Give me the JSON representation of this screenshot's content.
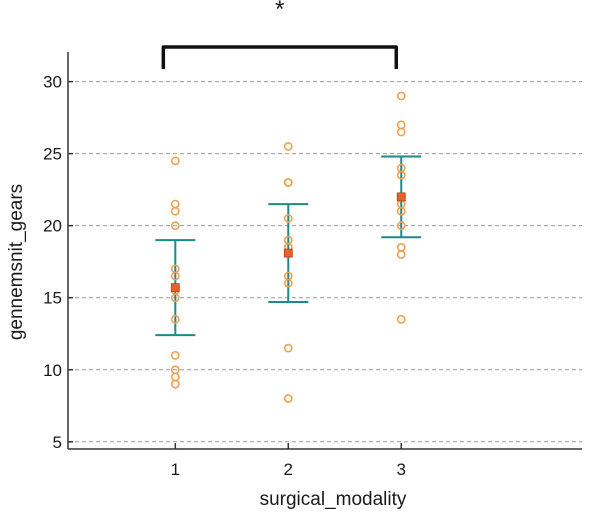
{
  "chart_data": {
    "type": "scatter",
    "xlabel": "surgical_modality",
    "ylabel": "gennemsnit_gears",
    "ylim": [
      4.5,
      31.5
    ],
    "xlim": [
      0.05,
      4.6
    ],
    "yticks": [
      5,
      10,
      15,
      20,
      25,
      30
    ],
    "xticks": [
      1,
      2,
      3
    ],
    "grid": "horizontal dashed",
    "colors": {
      "points": "#f0a050",
      "mean": "#e8602c",
      "error_bar": "#1a8a8a",
      "grid": "#999999",
      "axis": "#333333"
    },
    "groups": [
      {
        "x": 1,
        "points": [
          24.5,
          21.5,
          21,
          20,
          17,
          16.5,
          15.5,
          15,
          13.5,
          11,
          10,
          9.5,
          9
        ],
        "mean": 15.7,
        "err_low": 12.4,
        "err_high": 19.0
      },
      {
        "x": 2,
        "points": [
          25.5,
          23,
          23,
          20.5,
          19,
          18.5,
          16.5,
          16,
          11.5,
          8
        ],
        "mean": 18.1,
        "err_low": 14.7,
        "err_high": 21.5
      },
      {
        "x": 3,
        "points": [
          29,
          27,
          26.5,
          24,
          23.5,
          22,
          21.5,
          21,
          20,
          18.5,
          18,
          13.5
        ],
        "mean": 22.0,
        "err_low": 19.2,
        "err_high": 24.8
      }
    ],
    "significance": {
      "from": 1,
      "to": 3,
      "label": "*"
    }
  }
}
